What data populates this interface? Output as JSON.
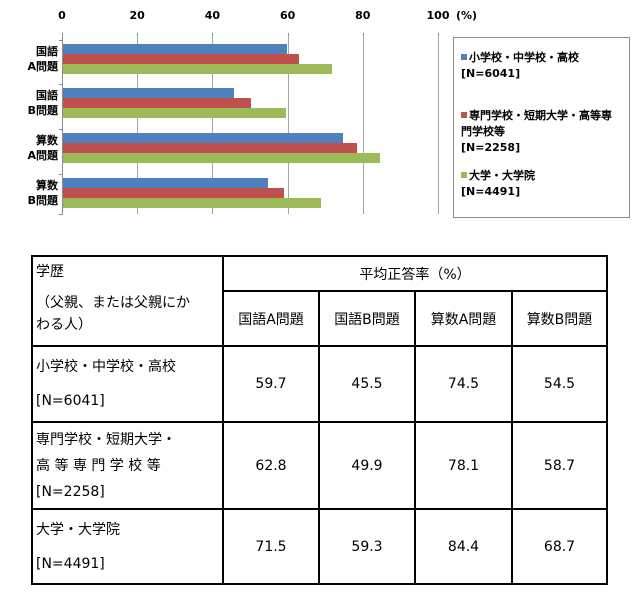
{
  "chart_data": {
    "type": "bar",
    "orientation": "horizontal",
    "title": "",
    "xlabel": "",
    "ylabel": "",
    "unit_label": "(%)",
    "xlim": [
      0,
      100
    ],
    "x_ticks": [
      "0",
      "20",
      "40",
      "60",
      "80",
      "100"
    ],
    "grid": true,
    "legend_position": "right",
    "categories": [
      [
        "国語",
        "A問題"
      ],
      [
        "国語",
        "B問題"
      ],
      [
        "算数",
        "A問題"
      ],
      [
        "算数",
        "B問題"
      ]
    ],
    "series": [
      {
        "name": "小学校・中学校・高校",
        "n_label": "[N=6041]",
        "color": "#4F81BD",
        "values": [
          59.7,
          45.5,
          74.5,
          54.5
        ]
      },
      {
        "name": "専門学校・短期大学・高等専門学校等",
        "name_lines": [
          "専門学校・短期大学・高等専",
          "門学校等"
        ],
        "n_label": "[N=2258]",
        "color": "#C0504D",
        "values": [
          62.8,
          49.9,
          78.1,
          58.7
        ]
      },
      {
        "name": "大学・大学院",
        "n_label": "[N=4491]",
        "color": "#9BBB59",
        "values": [
          71.5,
          59.3,
          84.4,
          68.7
        ]
      }
    ]
  },
  "table": {
    "header": {
      "edu_title": "学歴",
      "edu_sub_line1": "（父親、または父親にか",
      "edu_sub_line2": "わる人）",
      "group_title": "平均正答率（%）",
      "columns": [
        "国語A問題",
        "国語B問題",
        "算数A問題",
        "算数B問題"
      ]
    },
    "rows": [
      {
        "label_lines": [
          "小学校・中学校・高校",
          "[N=6041]"
        ],
        "values": [
          "59.7",
          "45.5",
          "74.5",
          "54.5"
        ]
      },
      {
        "label_lines": [
          "専門学校・短期大学・",
          "高 等 専 門 学 校 等",
          "[N=2258]"
        ],
        "values": [
          "62.8",
          "49.9",
          "78.1",
          "58.7"
        ]
      },
      {
        "label_lines": [
          "大学・大学院",
          "[N=4491]"
        ],
        "values": [
          "71.5",
          "59.3",
          "84.4",
          "68.7"
        ]
      }
    ]
  }
}
